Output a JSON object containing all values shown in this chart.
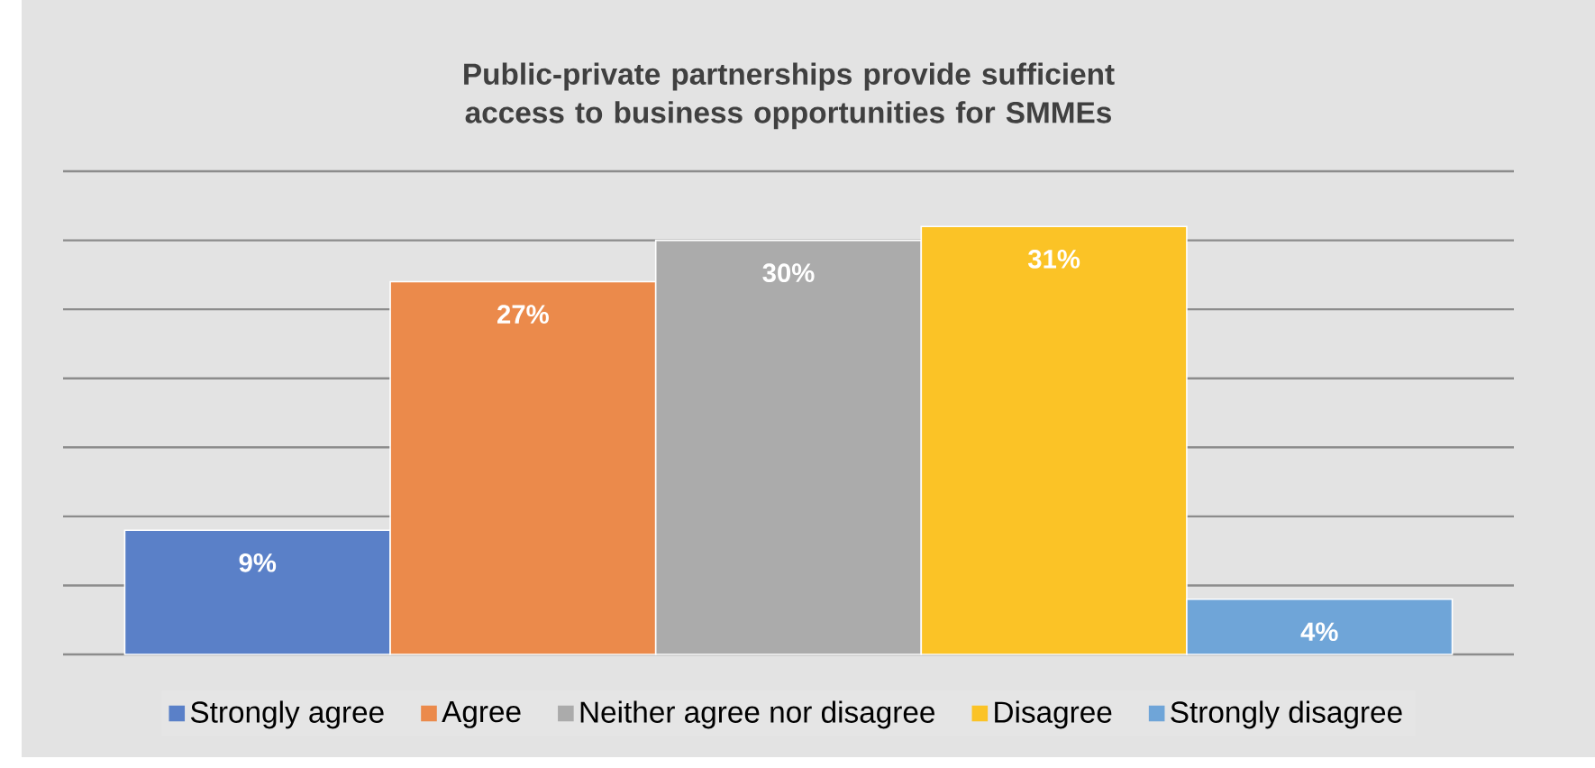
{
  "chart_data": {
    "type": "bar",
    "title": "Public-private partnerships provide sufficient access to business opportunities for SMMEs",
    "categories": [
      null
    ],
    "series": [
      {
        "name": "Strongly agree",
        "color": "#5a80c8",
        "values": [
          9
        ],
        "value_labels": [
          "9%"
        ]
      },
      {
        "name": "Agree",
        "color": "#eb8a4b",
        "values": [
          27
        ],
        "value_labels": [
          "27%"
        ]
      },
      {
        "name": "Neither agree nor disagree",
        "color": "#ababab",
        "values": [
          30
        ],
        "value_labels": [
          "30%"
        ]
      },
      {
        "name": "Disagree",
        "color": "#fbc326",
        "values": [
          31
        ],
        "value_labels": [
          "31%"
        ]
      },
      {
        "name": "Strongly disagree",
        "color": "#6fa5d8",
        "values": [
          4
        ],
        "value_labels": [
          "4%"
        ]
      }
    ],
    "ylim": [
      0,
      35
    ],
    "yticks": [
      {
        "value": 0,
        "label": null
      },
      {
        "value": 5,
        "label": null
      },
      {
        "value": 10,
        "label": null
      },
      {
        "value": 15,
        "label": null
      },
      {
        "value": 20,
        "label": null
      },
      {
        "value": 25,
        "label": null
      },
      {
        "value": 30,
        "label": null
      },
      {
        "value": 35,
        "label": null
      }
    ],
    "grid": "y",
    "legend": "bottom"
  }
}
